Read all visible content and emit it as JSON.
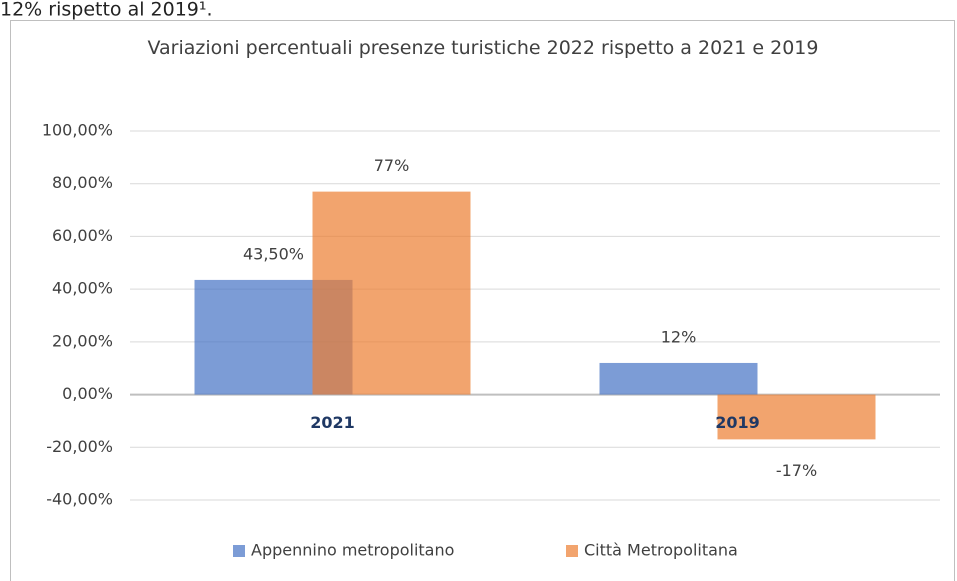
{
  "text_above": "12% rispetto al 2019¹.",
  "chart_data": {
    "type": "bar",
    "title": "Variazioni percentuali presenze turistiche 2022 rispetto a 2021 e 2019",
    "categories": [
      "2021",
      "2019"
    ],
    "series": [
      {
        "name": "Appennino metropolitano",
        "color": "#4472c4",
        "values": [
          43.5,
          12
        ],
        "value_labels": [
          "43,50%",
          "12%"
        ]
      },
      {
        "name": "Città Metropolitana",
        "color": "#ed7d31",
        "values": [
          77,
          -17
        ],
        "value_labels": [
          "77%",
          "-17%"
        ]
      }
    ],
    "bar_opacity": 0.7,
    "ylim": [
      -40,
      100
    ],
    "yticks": [
      {
        "value": -40,
        "label": "-40,00%"
      },
      {
        "value": -20,
        "label": "-20,00%"
      },
      {
        "value": 0,
        "label": "0,00%"
      },
      {
        "value": 20,
        "label": "20,00%"
      },
      {
        "value": 40,
        "label": "40,00%"
      },
      {
        "value": 60,
        "label": "60,00%"
      },
      {
        "value": 80,
        "label": "80,00%"
      },
      {
        "value": 100,
        "label": "100,00%"
      }
    ],
    "grid": true,
    "legend": "bottom"
  }
}
